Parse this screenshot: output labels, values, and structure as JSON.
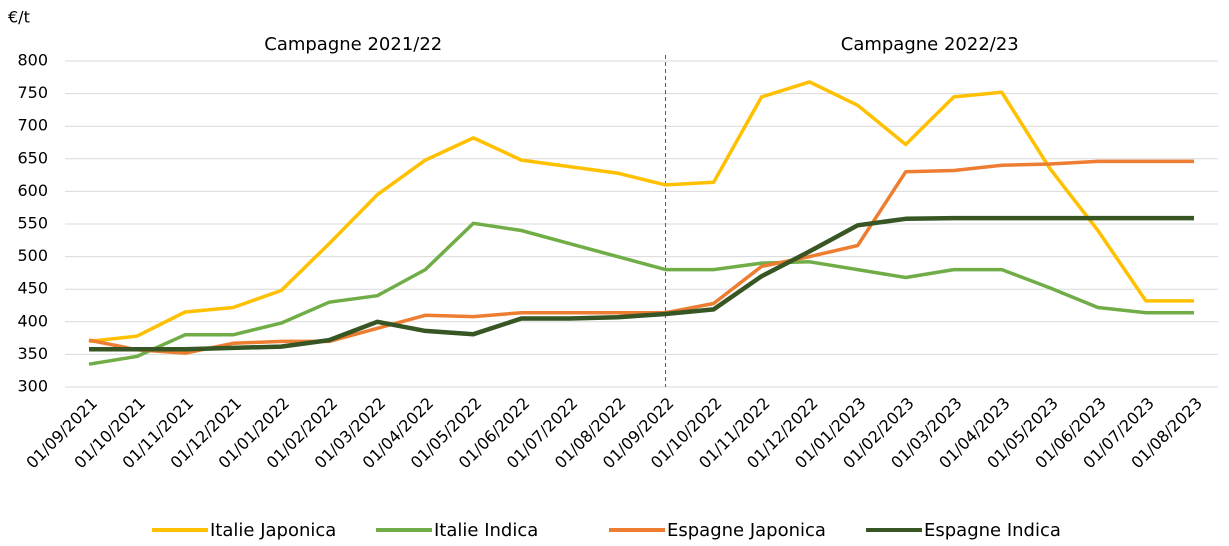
{
  "chart_data": {
    "type": "line",
    "y_label": "€/t",
    "annotations": [
      {
        "text": "Campagne 2021/22"
      },
      {
        "text": "Campagne 2022/23"
      }
    ],
    "vlines": [
      {
        "x": "01/09/2022",
        "color": "#e02020"
      }
    ],
    "categories": [
      "01/09/2021",
      "01/10/2021",
      "01/11/2021",
      "01/12/2021",
      "01/01/2022",
      "01/02/2022",
      "01/03/2022",
      "01/04/2022",
      "01/05/2022",
      "01/06/2022",
      "01/07/2022",
      "01/08/2022",
      "01/09/2022",
      "01/10/2022",
      "01/11/2022",
      "01/12/2022",
      "01/01/2023",
      "01/02/2023",
      "01/03/2023",
      "01/04/2023",
      "01/05/2023",
      "01/06/2023",
      "01/07/2023",
      "01/08/2023"
    ],
    "series": [
      {
        "name": "Italie Japonica",
        "color": "#ffc000",
        "values": [
          370,
          378,
          415,
          422,
          448,
          520,
          595,
          648,
          682,
          648,
          638,
          628,
          610,
          614,
          745,
          768,
          732,
          672,
          745,
          752,
          635,
          540,
          432,
          432
        ]
      },
      {
        "name": "Italie Indica",
        "color": "#70ad47",
        "values": [
          335,
          347,
          380,
          380,
          398,
          430,
          440,
          480,
          551,
          540,
          520,
          500,
          480,
          480,
          490,
          492,
          480,
          468,
          480,
          480,
          452,
          422,
          414,
          414
        ]
      },
      {
        "name": "Espagne Japonica",
        "color": "#ed7d31",
        "values": [
          372,
          357,
          352,
          367,
          370,
          370,
          390,
          410,
          408,
          414,
          414,
          414,
          414,
          428,
          485,
          500,
          517,
          630,
          632,
          640,
          642,
          646,
          646,
          646
        ]
      },
      {
        "name": "Espagne Indica",
        "color": "#375623",
        "values": [
          358,
          358,
          358,
          360,
          362,
          372,
          400,
          386,
          381,
          405,
          405,
          407,
          412,
          419,
          470,
          508,
          548,
          558,
          559,
          559,
          559,
          559,
          559,
          559
        ]
      }
    ],
    "ylim": [
      300,
      800
    ],
    "yticks": [
      300,
      350,
      400,
      450,
      500,
      550,
      600,
      650,
      700,
      750,
      800
    ],
    "grid": true,
    "legend": "bottom"
  }
}
